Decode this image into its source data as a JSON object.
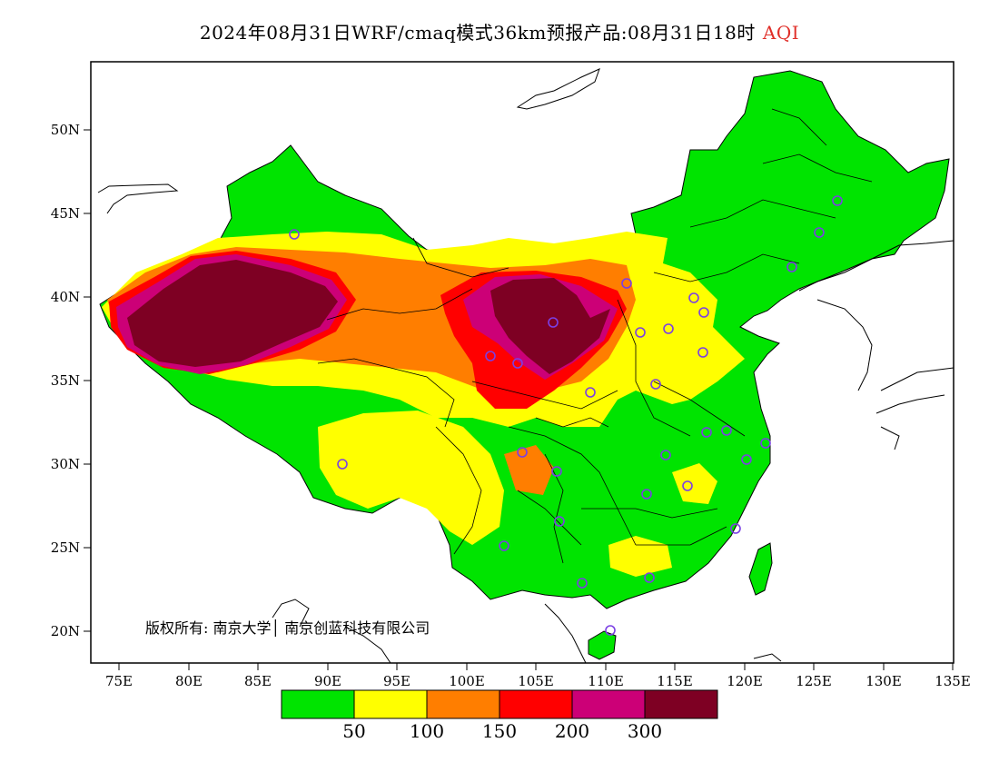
{
  "title": {
    "text": "2024年08月31日WRF/cmaq模式36km预报产品:08月31日18时",
    "variable": "AQI"
  },
  "axes": {
    "lon_ticks": [
      "75E",
      "80E",
      "85E",
      "90E",
      "95E",
      "100E",
      "105E",
      "110E",
      "115E",
      "120E",
      "125E",
      "130E",
      "135E"
    ],
    "lat_ticks": [
      "50N",
      "45N",
      "40N",
      "35N",
      "30N",
      "25N",
      "20N"
    ]
  },
  "copyright": "版权所有: 南京大学│ 南京创蓝科技有限公司",
  "legend": {
    "colors": [
      "#00e400",
      "#ffff00",
      "#ff7e00",
      "#ff0000",
      "#cc0077",
      "#7e0023"
    ],
    "labels": [
      "50",
      "100",
      "150",
      "200",
      "300"
    ]
  },
  "station_marker_color": "#7b3fe4"
}
